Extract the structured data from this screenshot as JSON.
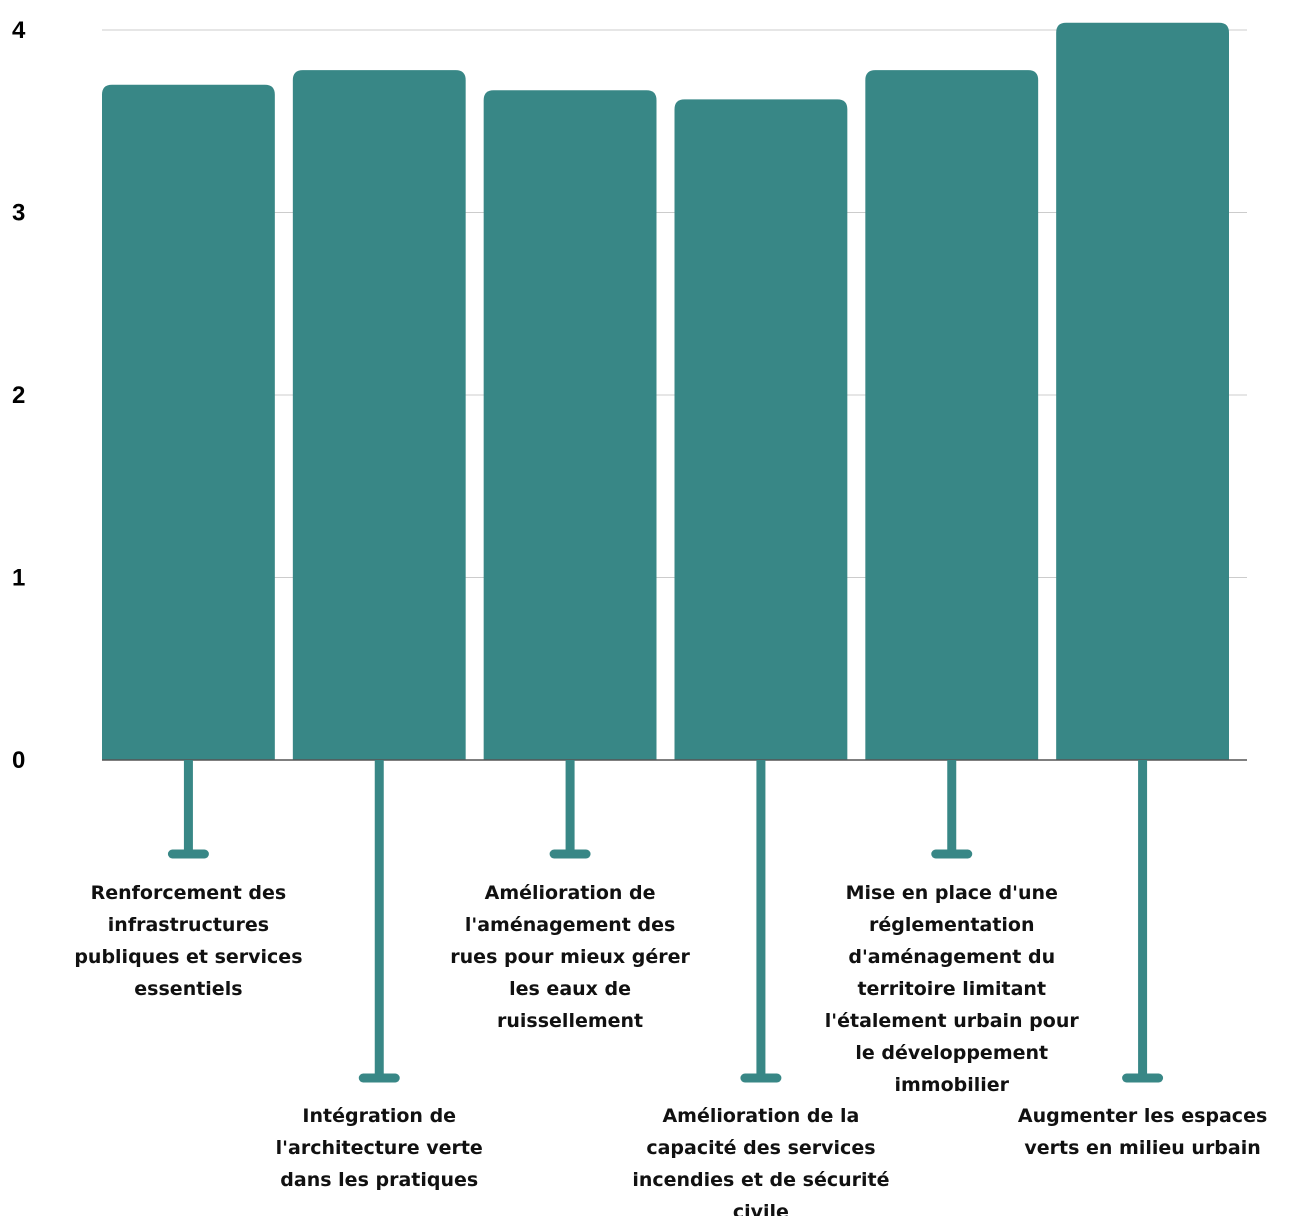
{
  "chart_data": {
    "type": "bar",
    "categories": [
      "Renforcement des infrastructures publiques et services essentiels",
      "Intégration de l'architecture verte dans les pratiques",
      "Amélioration de l'aménagement des rues pour mieux gérer les eaux de ruissellement",
      "Amélioration de la capacité des services incendies et de sécurité civile",
      "Mise en place d'une réglementation d'aménagement du territoire limitant l'étalement urbain pour le développement immobilier",
      "Augmenter les espaces verts en milieu urbain"
    ],
    "label_lines": [
      [
        "Renforcement des",
        "infrastructures",
        "publiques et services",
        "essentiels"
      ],
      [
        "Intégration de",
        "l'architecture verte",
        "dans les pratiques"
      ],
      [
        "Amélioration de",
        "l'aménagement des",
        "rues pour mieux gérer",
        "les eaux de",
        "ruissellement"
      ],
      [
        "Amélioration de la",
        "capacité des services",
        "incendies et de sécurité",
        "civile"
      ],
      [
        "Mise en place d'une",
        "réglementation",
        "d'aménagement du",
        "territoire limitant",
        "l'étalement urbain pour",
        "le développement",
        "immobilier"
      ],
      [
        "Augmenter les espaces",
        "verts en milieu urbain"
      ]
    ],
    "values": [
      3.7,
      3.78,
      3.67,
      3.62,
      3.78,
      4.04
    ],
    "title": "",
    "xlabel": "",
    "ylabel": "",
    "ylim": [
      0,
      4
    ],
    "yticks": [
      "0",
      "1",
      "2",
      "3",
      "4"
    ],
    "grid": true,
    "colors": {
      "bar": "#388786",
      "grid": "#cccccc",
      "axis": "#555555",
      "label": "#111111"
    }
  }
}
